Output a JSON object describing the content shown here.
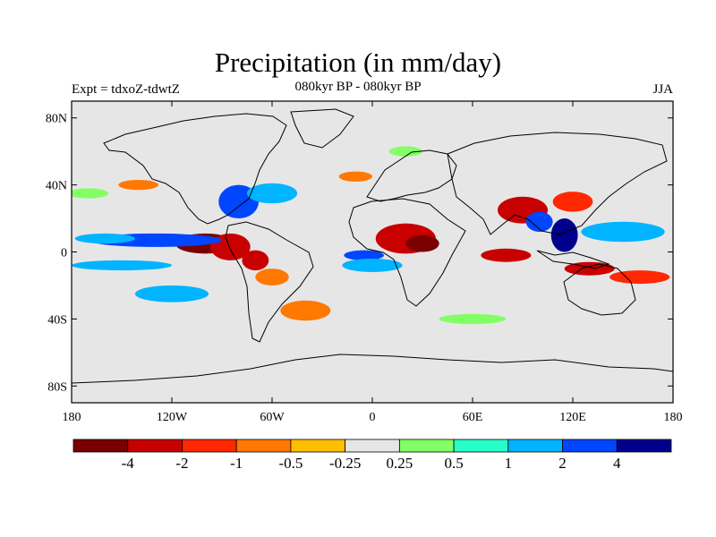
{
  "title": "Precipitation (in mm/day)",
  "subtitle_left": "Expt = tdxoZ-tdwtZ",
  "subtitle_center": "080kyr BP - 080kyr BP",
  "subtitle_right": "JJA",
  "map": {
    "projection": "cylindrical-equidistant",
    "lon_range": [
      -180,
      180
    ],
    "lat_range": [
      -90,
      90
    ],
    "background_color": "#e6e6e6",
    "lon_ticks": [
      {
        "value": -180,
        "label": "180"
      },
      {
        "value": -120,
        "label": "120W"
      },
      {
        "value": -60,
        "label": "60W"
      },
      {
        "value": 0,
        "label": "0"
      },
      {
        "value": 60,
        "label": "60E"
      },
      {
        "value": 120,
        "label": "120E"
      },
      {
        "value": 180,
        "label": "180"
      }
    ],
    "lat_ticks": [
      {
        "value": 80,
        "label": "80N"
      },
      {
        "value": 40,
        "label": "40N"
      },
      {
        "value": 0,
        "label": "0"
      },
      {
        "value": -40,
        "label": "40S"
      },
      {
        "value": -80,
        "label": "80S"
      }
    ]
  },
  "colorbar": {
    "colors": [
      "#7a0000",
      "#c80000",
      "#ff2800",
      "#ff7800",
      "#ffbe00",
      "#e6e6e6",
      "#82ff64",
      "#28ffc8",
      "#00b4ff",
      "#0046ff",
      "#00008c"
    ],
    "labels": [
      "-4",
      "-2",
      "-1",
      "-0.5",
      "-0.25",
      "0.25",
      "0.5",
      "1",
      "2",
      "4"
    ]
  },
  "anomalies": [
    {
      "lon": -100,
      "lat": 5,
      "rx": 18,
      "ry": 6,
      "level": 0
    },
    {
      "lon": -85,
      "lat": 3,
      "rx": 12,
      "ry": 8,
      "level": 1
    },
    {
      "lon": -70,
      "lat": -5,
      "rx": 8,
      "ry": 6,
      "level": 1
    },
    {
      "lon": -60,
      "lat": -15,
      "rx": 10,
      "ry": 5,
      "level": 3
    },
    {
      "lon": -130,
      "lat": 7,
      "rx": 40,
      "ry": 4,
      "level": 9
    },
    {
      "lon": -160,
      "lat": 8,
      "rx": 18,
      "ry": 3,
      "level": 8
    },
    {
      "lon": -150,
      "lat": -8,
      "rx": 30,
      "ry": 3,
      "level": 8
    },
    {
      "lon": -120,
      "lat": -25,
      "rx": 22,
      "ry": 5,
      "level": 8
    },
    {
      "lon": -80,
      "lat": 30,
      "rx": 12,
      "ry": 10,
      "level": 9
    },
    {
      "lon": -60,
      "lat": 35,
      "rx": 15,
      "ry": 6,
      "level": 8
    },
    {
      "lon": -40,
      "lat": -35,
      "rx": 15,
      "ry": 6,
      "level": 3
    },
    {
      "lon": 20,
      "lat": 8,
      "rx": 18,
      "ry": 9,
      "level": 1
    },
    {
      "lon": 30,
      "lat": 5,
      "rx": 10,
      "ry": 5,
      "level": 0
    },
    {
      "lon": -5,
      "lat": -2,
      "rx": 12,
      "ry": 3,
      "level": 9
    },
    {
      "lon": 0,
      "lat": -8,
      "rx": 18,
      "ry": 4,
      "level": 8
    },
    {
      "lon": 90,
      "lat": 25,
      "rx": 15,
      "ry": 8,
      "level": 1
    },
    {
      "lon": 120,
      "lat": 30,
      "rx": 12,
      "ry": 6,
      "level": 2
    },
    {
      "lon": 115,
      "lat": 10,
      "rx": 8,
      "ry": 10,
      "level": 10
    },
    {
      "lon": 100,
      "lat": 18,
      "rx": 8,
      "ry": 6,
      "level": 9
    },
    {
      "lon": 150,
      "lat": 12,
      "rx": 25,
      "ry": 6,
      "level": 8
    },
    {
      "lon": 80,
      "lat": -2,
      "rx": 15,
      "ry": 4,
      "level": 1
    },
    {
      "lon": 130,
      "lat": -10,
      "rx": 15,
      "ry": 4,
      "level": 1
    },
    {
      "lon": 160,
      "lat": -15,
      "rx": 18,
      "ry": 4,
      "level": 2
    },
    {
      "lon": -170,
      "lat": 35,
      "rx": 12,
      "ry": 3,
      "level": 6
    },
    {
      "lon": 60,
      "lat": -40,
      "rx": 20,
      "ry": 3,
      "level": 6
    },
    {
      "lon": 20,
      "lat": 60,
      "rx": 10,
      "ry": 3,
      "level": 6
    },
    {
      "lon": -140,
      "lat": 40,
      "rx": 12,
      "ry": 3,
      "level": 3
    },
    {
      "lon": -10,
      "lat": 45,
      "rx": 10,
      "ry": 3,
      "level": 3
    }
  ]
}
